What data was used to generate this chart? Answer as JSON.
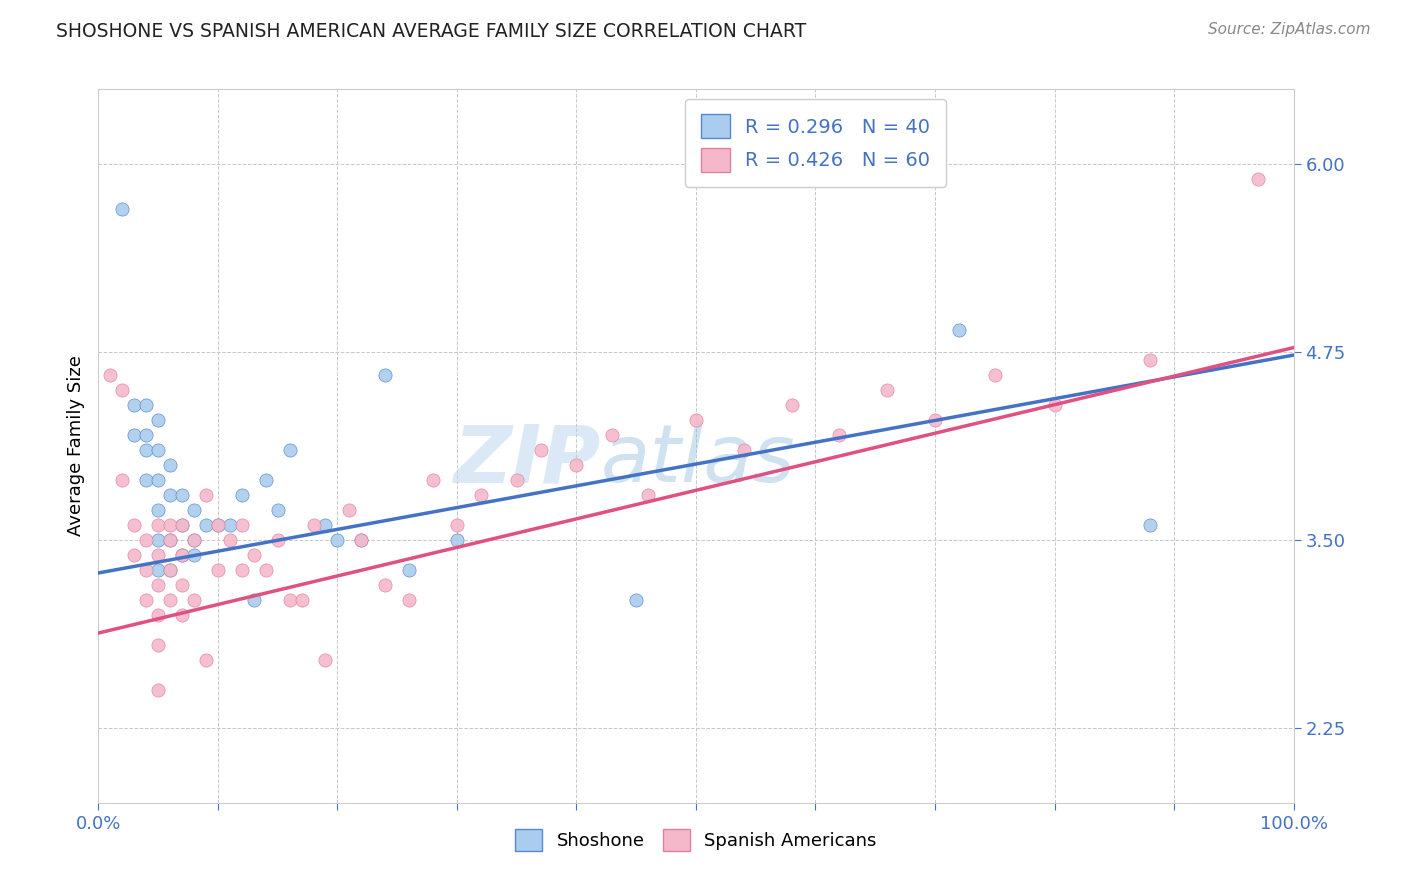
{
  "title": "SHOSHONE VS SPANISH AMERICAN AVERAGE FAMILY SIZE CORRELATION CHART",
  "source": "Source: ZipAtlas.com",
  "ylabel": "Average Family Size",
  "xlim": [
    0,
    1
  ],
  "ylim": [
    1.75,
    6.5
  ],
  "yticks": [
    2.25,
    3.5,
    4.75,
    6.0
  ],
  "xticks": [
    0.0,
    0.1,
    0.2,
    0.3,
    0.4,
    0.5,
    0.6,
    0.7,
    0.8,
    0.9,
    1.0
  ],
  "xticklabels": [
    "0.0%",
    "",
    "",
    "",
    "",
    "",
    "",
    "",
    "",
    "",
    "100.0%"
  ],
  "background_color": "#ffffff",
  "grid_color": "#c8c8c8",
  "shoshone_color": "#aaccee",
  "shoshone_edge_color": "#5588cc",
  "shoshone_line_color": "#4472c4",
  "spanish_color": "#f5b8cb",
  "spanish_edge_color": "#e080a0",
  "spanish_line_color": "#e05080",
  "shoshone_R": 0.296,
  "shoshone_N": 40,
  "spanish_R": 0.426,
  "spanish_N": 60,
  "watermark": "ZIPatlas",
  "shoshone_x": [
    0.02,
    0.03,
    0.03,
    0.04,
    0.04,
    0.04,
    0.04,
    0.05,
    0.05,
    0.05,
    0.05,
    0.05,
    0.06,
    0.06,
    0.06,
    0.07,
    0.07,
    0.08,
    0.08,
    0.09,
    0.1,
    0.11,
    0.12,
    0.13,
    0.14,
    0.15,
    0.16,
    0.19,
    0.2,
    0.22,
    0.24,
    0.26,
    0.3,
    0.45,
    0.72,
    0.88,
    0.05,
    0.06,
    0.07,
    0.08
  ],
  "shoshone_y": [
    5.7,
    4.4,
    4.2,
    4.4,
    4.2,
    4.1,
    3.9,
    4.3,
    4.1,
    3.9,
    3.7,
    3.5,
    4.0,
    3.8,
    3.5,
    3.8,
    3.6,
    3.7,
    3.5,
    3.6,
    3.6,
    3.6,
    3.8,
    3.1,
    3.9,
    3.7,
    4.1,
    3.6,
    3.5,
    3.5,
    4.6,
    3.3,
    3.5,
    3.1,
    4.9,
    3.6,
    3.3,
    3.3,
    3.4,
    3.4
  ],
  "spanish_x": [
    0.01,
    0.02,
    0.02,
    0.03,
    0.03,
    0.04,
    0.04,
    0.04,
    0.05,
    0.05,
    0.05,
    0.05,
    0.05,
    0.05,
    0.06,
    0.06,
    0.06,
    0.06,
    0.07,
    0.07,
    0.07,
    0.07,
    0.08,
    0.08,
    0.09,
    0.09,
    0.1,
    0.1,
    0.11,
    0.12,
    0.12,
    0.13,
    0.14,
    0.15,
    0.16,
    0.17,
    0.18,
    0.19,
    0.21,
    0.22,
    0.24,
    0.26,
    0.28,
    0.3,
    0.32,
    0.35,
    0.37,
    0.4,
    0.43,
    0.46,
    0.5,
    0.54,
    0.58,
    0.62,
    0.66,
    0.7,
    0.75,
    0.8,
    0.88,
    0.97
  ],
  "spanish_y": [
    4.6,
    4.5,
    3.9,
    3.6,
    3.4,
    3.5,
    3.3,
    3.1,
    3.6,
    3.4,
    3.2,
    3.0,
    2.8,
    2.5,
    3.6,
    3.5,
    3.3,
    3.1,
    3.6,
    3.4,
    3.2,
    3.0,
    3.5,
    3.1,
    3.8,
    2.7,
    3.6,
    3.3,
    3.5,
    3.6,
    3.3,
    3.4,
    3.3,
    3.5,
    3.1,
    3.1,
    3.6,
    2.7,
    3.7,
    3.5,
    3.2,
    3.1,
    3.9,
    3.6,
    3.8,
    3.9,
    4.1,
    4.0,
    4.2,
    3.8,
    4.3,
    4.1,
    4.4,
    4.2,
    4.5,
    4.3,
    4.6,
    4.4,
    4.7,
    5.9
  ]
}
